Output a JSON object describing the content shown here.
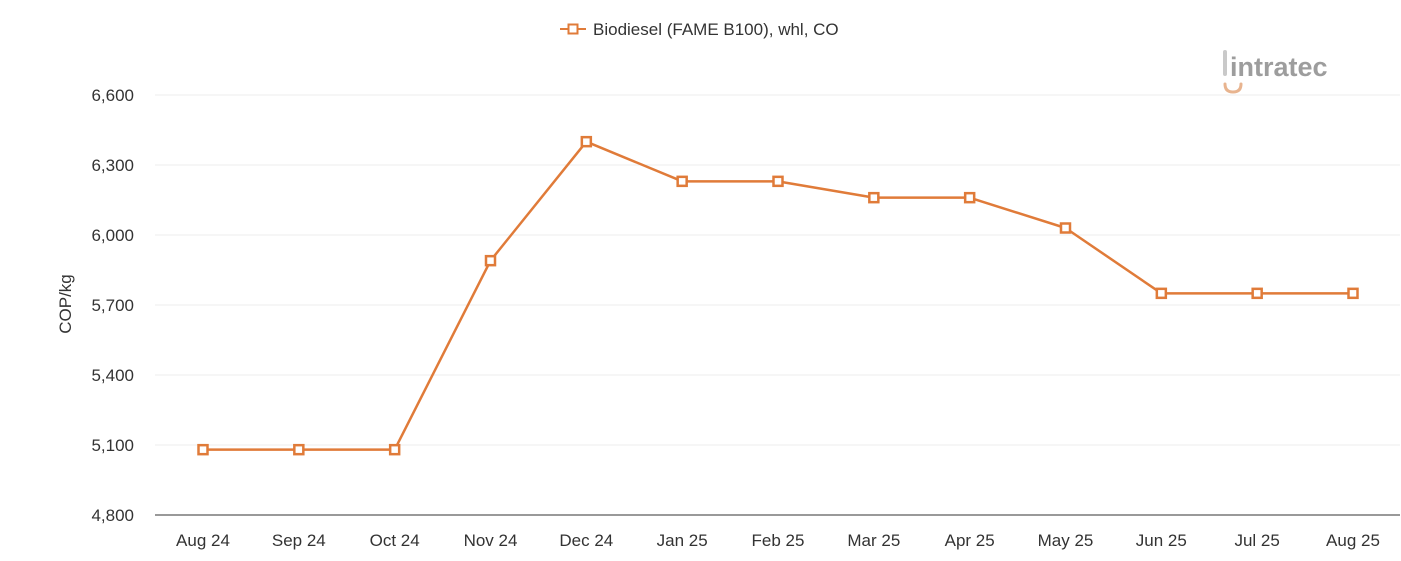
{
  "logo": {
    "text": "intratec",
    "colors": {
      "text": "#9d9d9d",
      "accent": "#e8b48f"
    }
  },
  "chart_data": {
    "type": "line",
    "title": "",
    "xlabel": "",
    "ylabel": "COP/kg",
    "categories": [
      "Aug 24",
      "Sep 24",
      "Oct 24",
      "Nov 24",
      "Dec 24",
      "Jan 25",
      "Feb 25",
      "Mar 25",
      "Apr 25",
      "May 25",
      "Jun 25",
      "Jul 25",
      "Aug 25"
    ],
    "series": [
      {
        "name": "Biodiesel (FAME B100), whl, CO",
        "color": "#e07b39",
        "marker": "square-open",
        "values": [
          5080,
          5080,
          5080,
          5890,
          6400,
          6230,
          6230,
          6160,
          6160,
          6030,
          5750,
          5750,
          5750
        ]
      }
    ],
    "ylim": [
      4800,
      6600
    ],
    "yticks": [
      4800,
      5100,
      5400,
      5700,
      6000,
      6300,
      6600
    ],
    "ytick_labels": [
      "4,800",
      "5,100",
      "5,400",
      "5,700",
      "6,000",
      "6,300",
      "6,600"
    ],
    "grid": true,
    "legend_position": "top-center"
  }
}
